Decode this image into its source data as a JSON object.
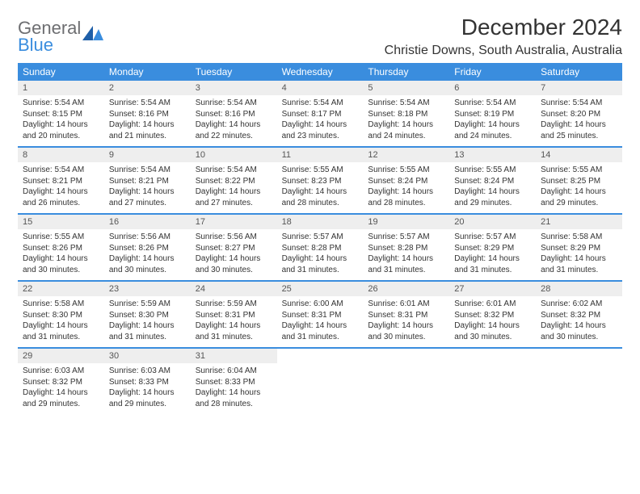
{
  "brand": {
    "part1": "General",
    "part2": "Blue"
  },
  "title": "December 2024",
  "location": "Christie Downs, South Australia, Australia",
  "colors": {
    "brand_blue": "#3a8dde",
    "brand_gray": "#6d6e71",
    "header_bg": "#3a8dde",
    "daynum_bg": "#eeeeee",
    "text": "#333333",
    "background": "#ffffff"
  },
  "typography": {
    "title_fontsize": 28,
    "location_fontsize": 16,
    "dow_fontsize": 12,
    "daynum_fontsize": 11,
    "body_fontsize": 10
  },
  "daysOfWeek": [
    "Sunday",
    "Monday",
    "Tuesday",
    "Wednesday",
    "Thursday",
    "Friday",
    "Saturday"
  ],
  "weeks": [
    [
      {
        "n": "1",
        "sr": "5:54 AM",
        "ss": "8:15 PM",
        "dlh": "14",
        "dlm": "20"
      },
      {
        "n": "2",
        "sr": "5:54 AM",
        "ss": "8:16 PM",
        "dlh": "14",
        "dlm": "21"
      },
      {
        "n": "3",
        "sr": "5:54 AM",
        "ss": "8:16 PM",
        "dlh": "14",
        "dlm": "22"
      },
      {
        "n": "4",
        "sr": "5:54 AM",
        "ss": "8:17 PM",
        "dlh": "14",
        "dlm": "23"
      },
      {
        "n": "5",
        "sr": "5:54 AM",
        "ss": "8:18 PM",
        "dlh": "14",
        "dlm": "24"
      },
      {
        "n": "6",
        "sr": "5:54 AM",
        "ss": "8:19 PM",
        "dlh": "14",
        "dlm": "24"
      },
      {
        "n": "7",
        "sr": "5:54 AM",
        "ss": "8:20 PM",
        "dlh": "14",
        "dlm": "25"
      }
    ],
    [
      {
        "n": "8",
        "sr": "5:54 AM",
        "ss": "8:21 PM",
        "dlh": "14",
        "dlm": "26"
      },
      {
        "n": "9",
        "sr": "5:54 AM",
        "ss": "8:21 PM",
        "dlh": "14",
        "dlm": "27"
      },
      {
        "n": "10",
        "sr": "5:54 AM",
        "ss": "8:22 PM",
        "dlh": "14",
        "dlm": "27"
      },
      {
        "n": "11",
        "sr": "5:55 AM",
        "ss": "8:23 PM",
        "dlh": "14",
        "dlm": "28"
      },
      {
        "n": "12",
        "sr": "5:55 AM",
        "ss": "8:24 PM",
        "dlh": "14",
        "dlm": "28"
      },
      {
        "n": "13",
        "sr": "5:55 AM",
        "ss": "8:24 PM",
        "dlh": "14",
        "dlm": "29"
      },
      {
        "n": "14",
        "sr": "5:55 AM",
        "ss": "8:25 PM",
        "dlh": "14",
        "dlm": "29"
      }
    ],
    [
      {
        "n": "15",
        "sr": "5:55 AM",
        "ss": "8:26 PM",
        "dlh": "14",
        "dlm": "30"
      },
      {
        "n": "16",
        "sr": "5:56 AM",
        "ss": "8:26 PM",
        "dlh": "14",
        "dlm": "30"
      },
      {
        "n": "17",
        "sr": "5:56 AM",
        "ss": "8:27 PM",
        "dlh": "14",
        "dlm": "30"
      },
      {
        "n": "18",
        "sr": "5:57 AM",
        "ss": "8:28 PM",
        "dlh": "14",
        "dlm": "31"
      },
      {
        "n": "19",
        "sr": "5:57 AM",
        "ss": "8:28 PM",
        "dlh": "14",
        "dlm": "31"
      },
      {
        "n": "20",
        "sr": "5:57 AM",
        "ss": "8:29 PM",
        "dlh": "14",
        "dlm": "31"
      },
      {
        "n": "21",
        "sr": "5:58 AM",
        "ss": "8:29 PM",
        "dlh": "14",
        "dlm": "31"
      }
    ],
    [
      {
        "n": "22",
        "sr": "5:58 AM",
        "ss": "8:30 PM",
        "dlh": "14",
        "dlm": "31"
      },
      {
        "n": "23",
        "sr": "5:59 AM",
        "ss": "8:30 PM",
        "dlh": "14",
        "dlm": "31"
      },
      {
        "n": "24",
        "sr": "5:59 AM",
        "ss": "8:31 PM",
        "dlh": "14",
        "dlm": "31"
      },
      {
        "n": "25",
        "sr": "6:00 AM",
        "ss": "8:31 PM",
        "dlh": "14",
        "dlm": "31"
      },
      {
        "n": "26",
        "sr": "6:01 AM",
        "ss": "8:31 PM",
        "dlh": "14",
        "dlm": "30"
      },
      {
        "n": "27",
        "sr": "6:01 AM",
        "ss": "8:32 PM",
        "dlh": "14",
        "dlm": "30"
      },
      {
        "n": "28",
        "sr": "6:02 AM",
        "ss": "8:32 PM",
        "dlh": "14",
        "dlm": "30"
      }
    ],
    [
      {
        "n": "29",
        "sr": "6:03 AM",
        "ss": "8:32 PM",
        "dlh": "14",
        "dlm": "29"
      },
      {
        "n": "30",
        "sr": "6:03 AM",
        "ss": "8:33 PM",
        "dlh": "14",
        "dlm": "29"
      },
      {
        "n": "31",
        "sr": "6:04 AM",
        "ss": "8:33 PM",
        "dlh": "14",
        "dlm": "28"
      },
      null,
      null,
      null,
      null
    ]
  ],
  "labels": {
    "sunrise": "Sunrise:",
    "sunset": "Sunset:",
    "daylight": "Daylight:",
    "hours_word": "hours",
    "and_word": "and",
    "minutes_word": "minutes."
  }
}
